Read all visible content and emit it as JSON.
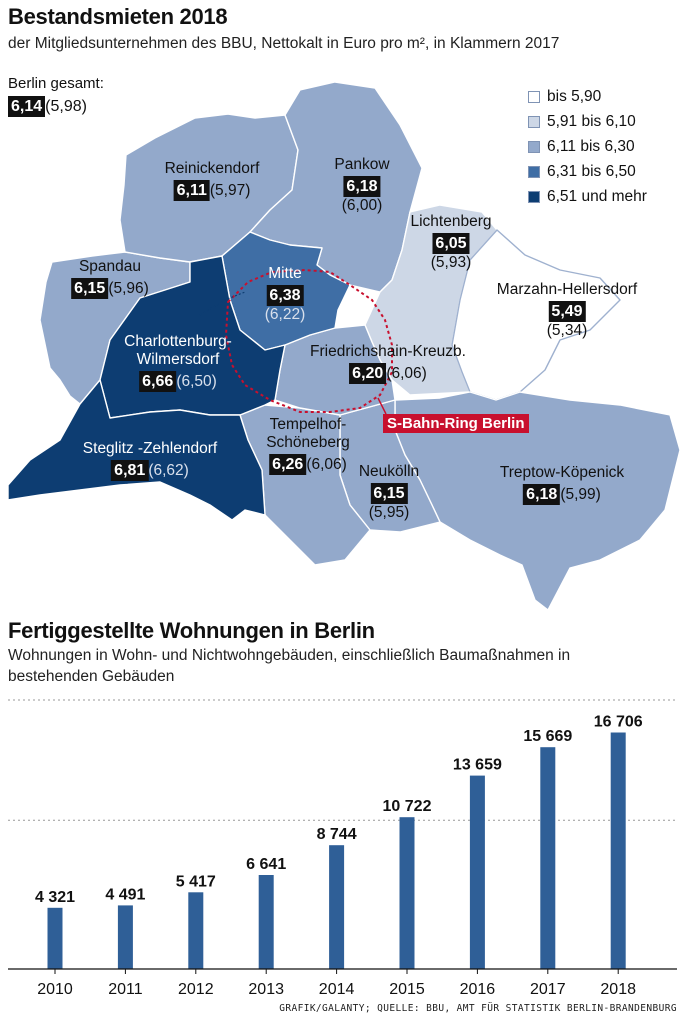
{
  "map": {
    "title": "Bestandsmieten 2018",
    "subtitle": "der Mitgliedsunternehmen des BBU, Nettokalt in Euro pro m², in Klammern 2017",
    "berlin_label": "Berlin gesamt:",
    "berlin_value": "6,14",
    "berlin_prev": "(5,98)",
    "legend": [
      {
        "label": "bis 5,90",
        "color": "#ffffff"
      },
      {
        "label": "5,91 bis 6,10",
        "color": "#cdd7e6"
      },
      {
        "label": "6,11 bis 6,30",
        "color": "#93a9cb"
      },
      {
        "label": "6,31 bis 6,50",
        "color": "#3f6ea5"
      },
      {
        "label": "6,51 und mehr",
        "color": "#0d3d72"
      }
    ],
    "sbahn_label": "S-Bahn-Ring Berlin",
    "sbahn_color": "#c8102e",
    "districts": [
      {
        "name": "Reinickendorf",
        "value": "6,11",
        "prev": "(5,97)"
      },
      {
        "name": "Pankow",
        "value": "6,18",
        "prev": "(6,00)"
      },
      {
        "name": "Lichtenberg",
        "value": "6,05",
        "prev": "(5,93)"
      },
      {
        "name": "Spandau",
        "value": "6,15",
        "prev": "(5,96)"
      },
      {
        "name": "Mitte",
        "value": "6,38",
        "prev": "(6,22)"
      },
      {
        "name": "Marzahn-Hellersdorf",
        "value": "5,49",
        "prev": "(5,34)"
      },
      {
        "name": "Charlottenburg-Wilmersdorf",
        "value": "6,66",
        "prev": "(6,50)"
      },
      {
        "name": "Friedrichshain-Kreuzb.",
        "value": "6,20",
        "prev": "(6,06)"
      },
      {
        "name": "Steglitz -Zehlendorf",
        "value": "6,81",
        "prev": "(6,62)"
      },
      {
        "name": "Tempelhof-Schöneberg",
        "value": "6,26",
        "prev": "(6,06)"
      },
      {
        "name": "Neukölln",
        "value": "6,15",
        "prev": "(5,95)"
      },
      {
        "name": "Treptow-Köpenick",
        "value": "6,18",
        "prev": "(5,99)"
      }
    ]
  },
  "chart_data": {
    "type": "bar",
    "title": "Fertiggestellte Wohnungen in Berlin",
    "subtitle": "Wohnungen in Wohn- und Nichtwohngebäuden, einschließlich Baumaßnahmen in bestehenden Gebäuden",
    "categories": [
      "2010",
      "2011",
      "2012",
      "2013",
      "2014",
      "2015",
      "2016",
      "2017",
      "2018"
    ],
    "values": [
      4321,
      4491,
      5417,
      6641,
      8744,
      10722,
      13659,
      15669,
      16706
    ],
    "value_labels": [
      "4 321",
      "4 491",
      "5 417",
      "6 641",
      "8 744",
      "10 722",
      "13 659",
      "15 669",
      "16 706"
    ],
    "ylim": [
      0,
      19000
    ],
    "grid": "dashed",
    "bar_color": "#2f5f97",
    "xlabel": "",
    "ylabel": ""
  },
  "source": "GRAFIK/GALANTY; QUELLE: BBU, AMT FÜR STATISTIK BERLIN-BRANDENBURG"
}
